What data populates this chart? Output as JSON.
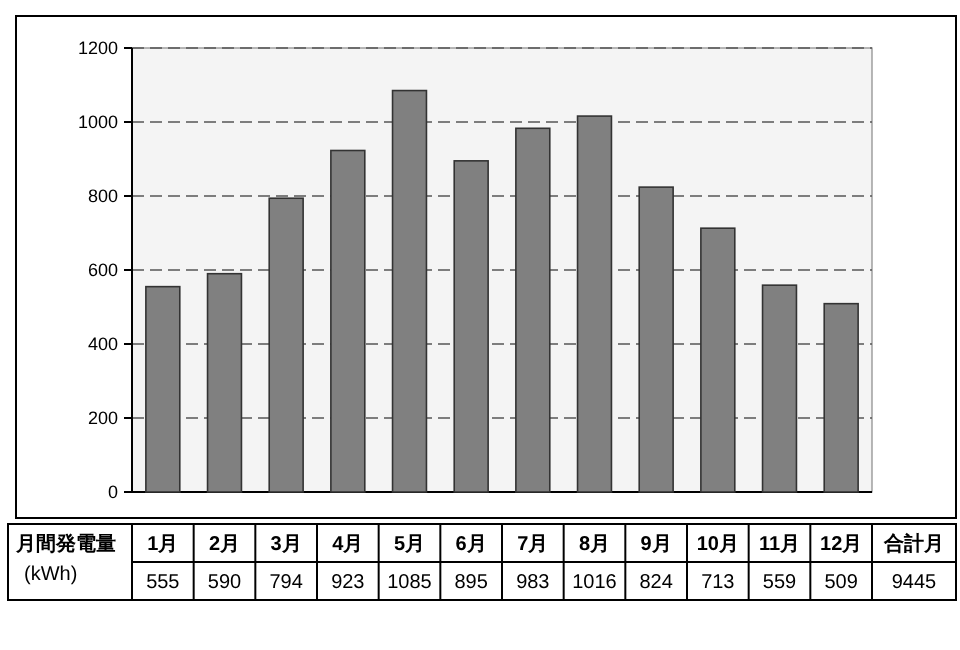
{
  "chart_data": {
    "type": "bar",
    "ylabel": "月間発電量 (kWh)",
    "categories": [
      "1月",
      "2月",
      "3月",
      "4月",
      "5月",
      "6月",
      "7月",
      "8月",
      "9月",
      "10月",
      "11月",
      "12月"
    ],
    "values": [
      555,
      590,
      794,
      923,
      1085,
      895,
      983,
      1016,
      824,
      713,
      559,
      509
    ],
    "color": "#808080",
    "ylim": [
      0,
      1200
    ],
    "yticks": [
      0,
      200,
      400,
      600,
      800,
      1000,
      1200
    ],
    "grid": "y",
    "data_labels": true,
    "annotations": [
      "合計月",
      "9445"
    ]
  }
}
